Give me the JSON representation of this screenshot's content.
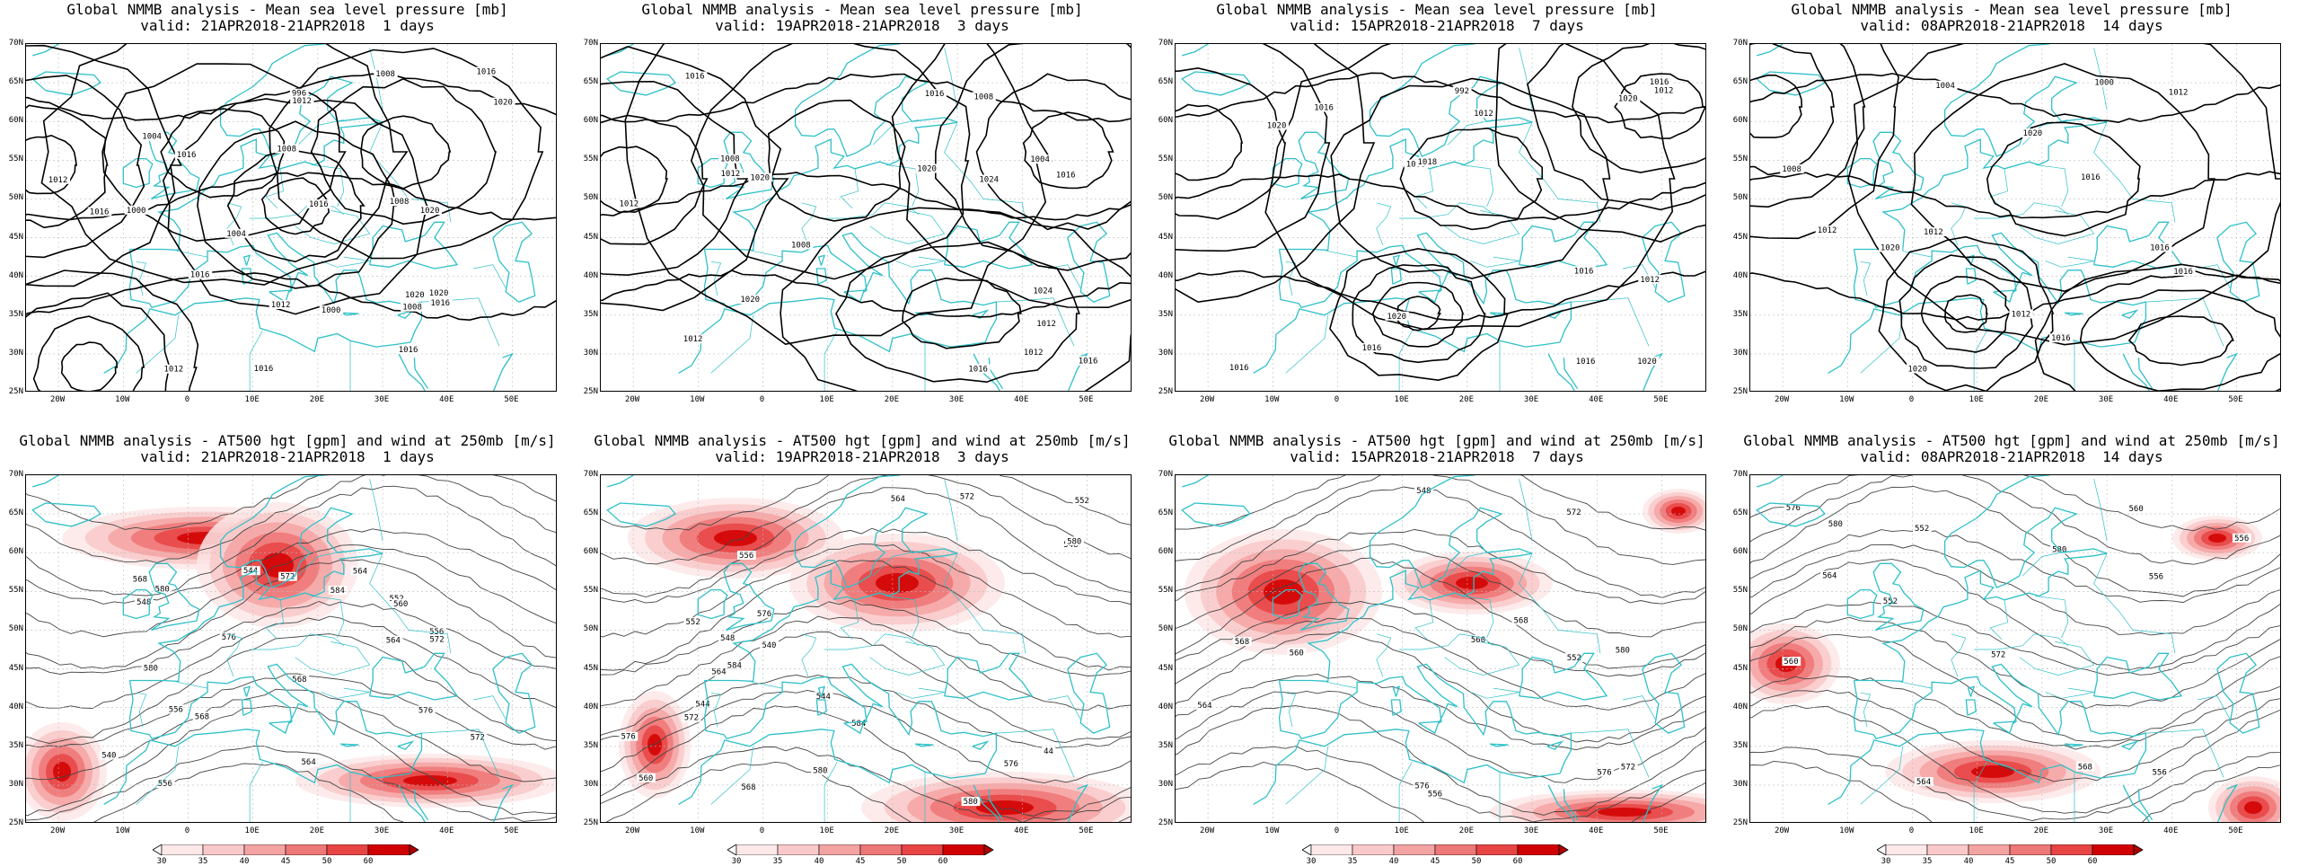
{
  "panels": [
    {
      "id": "mslp-1",
      "row": 0,
      "col": 0,
      "line1": "Global NMMB analysis - Mean sea level pressure [mb]",
      "line2": "valid: 21APR2018-21APR2018  1 days",
      "contour_labels": [
        "1000",
        "1004",
        "1008",
        "1016",
        "1020",
        "1016",
        "1020",
        "1016",
        "996",
        "1000",
        "1004",
        "1008",
        "1016",
        "1020",
        "1016",
        "1020",
        "1012",
        "1012",
        "1016",
        "1012",
        "1008",
        "1016",
        "1008",
        "1012",
        "1016"
      ]
    },
    {
      "id": "mslp-3",
      "row": 0,
      "col": 1,
      "line1": "Global NMMB analysis - Mean sea level pressure [mb]",
      "line2": "valid: 19APR2018-21APR2018  3 days",
      "contour_labels": [
        "1008",
        "1012",
        "1016",
        "1020",
        "1008",
        "1004",
        "1008",
        "1020",
        "1016",
        "1024",
        "1024",
        "1020",
        "1016",
        "1016",
        "1012",
        "1012",
        "1016",
        "1012",
        "1012"
      ]
    },
    {
      "id": "mslp-7",
      "row": 0,
      "col": 2,
      "line1": "Global NMMB analysis - Mean sea level pressure [mb]",
      "line2": "valid: 15APR2018-21APR2018  7 days",
      "contour_labels": [
        "1016",
        "1016",
        "1012",
        "1020",
        "992",
        "1008",
        "1012",
        "1016",
        "1020",
        "1020",
        "1016",
        "1016",
        "1018",
        "1016",
        "1012",
        "1020"
      ]
    },
    {
      "id": "mslp-14",
      "row": 0,
      "col": 3,
      "line1": "Global NMMB analysis - Mean sea level pressure [mb]",
      "line2": "valid: 08APR2018-21APR2018  14 days",
      "contour_labels": [
        "1020",
        "1016",
        "1020",
        "1000",
        "1004",
        "1008",
        "1012",
        "1016",
        "1016",
        "1012",
        "1012",
        "1012",
        "1016",
        "1020"
      ]
    },
    {
      "id": "z500-1",
      "row": 1,
      "col": 0,
      "line1": "Global NMMB analysis - AT500 hgt [gpm] and wind at 250mb [m/s]",
      "line2": "valid: 21APR2018-21APR2018  1 days",
      "contour_labels": [
        "540",
        "544",
        "548",
        "552",
        "556",
        "564",
        "568",
        "572",
        "576",
        "580",
        "568",
        "560",
        "556",
        "564",
        "572",
        "576",
        "580",
        "584",
        "556",
        "564",
        "568",
        "572"
      ]
    },
    {
      "id": "z500-3",
      "row": 1,
      "col": 1,
      "line1": "Global NMMB analysis - AT500 hgt [gpm] and wind at 250mb [m/s]",
      "line2": "valid: 19APR2018-21APR2018  3 days",
      "contour_labels": [
        "544",
        "548",
        "552",
        "556",
        "560",
        "540",
        "44",
        "564",
        "584",
        "580",
        "576",
        "568",
        "572",
        "576",
        "580",
        "544",
        "548",
        "552",
        "564",
        "572",
        "576",
        "580",
        "584"
      ]
    },
    {
      "id": "z500-7",
      "row": 1,
      "col": 2,
      "line1": "Global NMMB analysis - AT500 hgt [gpm] and wind at 250mb [m/s]",
      "line2": "valid: 15APR2018-21APR2018  7 days",
      "contour_labels": [
        "560",
        "564",
        "568",
        "572",
        "576",
        "580",
        "576",
        "572",
        "568",
        "560",
        "556",
        "552",
        "548"
      ]
    },
    {
      "id": "z500-14",
      "row": 1,
      "col": 3,
      "line1": "Global NMMB analysis - AT500 hgt [gpm] and wind at 250mb [m/s]",
      "line2": "valid: 08APR2018-21APR2018  14 days",
      "contour_labels": [
        "552",
        "556",
        "560",
        "564",
        "568",
        "572",
        "576",
        "580",
        "564",
        "560",
        "556",
        "552",
        "556",
        "580"
      ]
    }
  ],
  "axes": {
    "lat_ticks": [
      "70N",
      "65N",
      "60N",
      "55N",
      "50N",
      "45N",
      "40N",
      "35N",
      "30N",
      "25N"
    ],
    "lon_ticks": [
      "20W",
      "10W",
      "0",
      "10E",
      "20E",
      "30E",
      "40E",
      "50E"
    ]
  },
  "colorbar": {
    "ticks": [
      "30",
      "35",
      "40",
      "45",
      "50",
      "60"
    ],
    "colors": [
      "#fde8e8",
      "#f9c9c9",
      "#f4a3a3",
      "#ee7777",
      "#e74444",
      "#d10000"
    ]
  },
  "colors": {
    "coast": "#2fc0c8",
    "contour": "#000000",
    "contour_thin": "#444444",
    "grid": "#bbbbbb",
    "jet": "#e03030"
  }
}
